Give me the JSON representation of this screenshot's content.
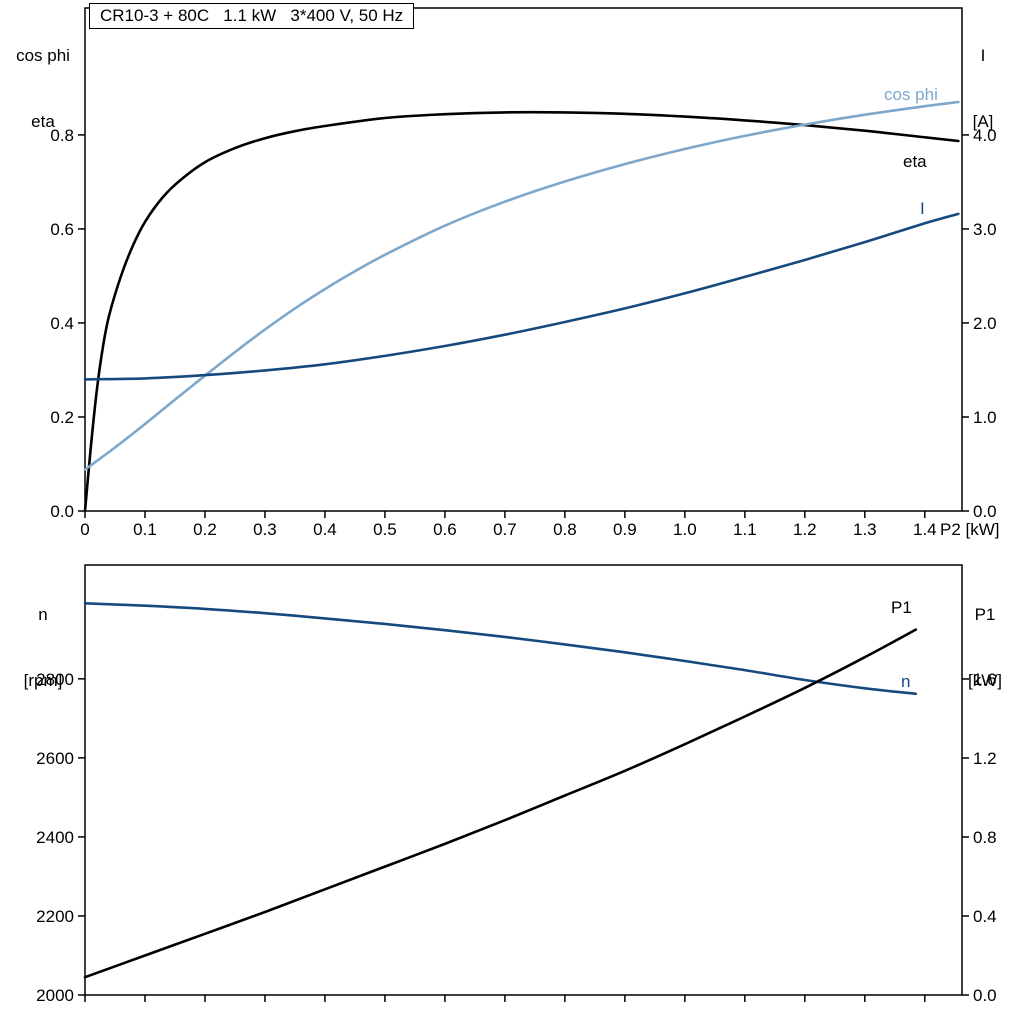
{
  "panel": {
    "title": "CR10-3 + 80C   1.1 kW   3*400 V, 50 Hz",
    "background": "#ffffff"
  },
  "colors": {
    "eta": "#000000",
    "cos_phi": "#7da7cb",
    "current": "#16497e",
    "n": "#16497e",
    "p1": "#000000",
    "frame": "#000000",
    "text": "#000000"
  },
  "chart_data": [
    {
      "id": "top",
      "type": "line",
      "title": "CR10-3 + 80C   1.1 kW   3*400 V, 50 Hz",
      "xlabel": "P2 [kW]",
      "xlim": [
        0,
        1.462
      ],
      "grid": false,
      "x_ticks": [
        0,
        0.1,
        0.2,
        0.3,
        0.4,
        0.5,
        0.6,
        0.7,
        0.8,
        0.9,
        1.0,
        1.1,
        1.2,
        1.3,
        1.4
      ],
      "x_tick_labels": [
        "0",
        "0.1",
        "0.2",
        "0.3",
        "0.4",
        "0.5",
        "0.6",
        "0.7",
        "0.8",
        "0.9",
        "1.0",
        "1.1",
        "1.2",
        "1.3",
        "1.4"
      ],
      "show_x_tick_labels": true,
      "left_axis": {
        "label1": "cos phi",
        "label2": "eta",
        "lim": [
          0,
          1.07
        ],
        "ticks": [
          0,
          0.2,
          0.4,
          0.6,
          0.8
        ],
        "tick_labels": [
          "0.0",
          "0.2",
          "0.4",
          "0.6",
          "0.8"
        ]
      },
      "right_axis": {
        "label1": "I",
        "label2": "[A]",
        "lim": [
          0,
          5.35
        ],
        "ticks": [
          0,
          1,
          2,
          3,
          4
        ],
        "tick_labels": [
          "0.0",
          "1.0",
          "2.0",
          "3.0",
          "4.0"
        ]
      },
      "series": [
        {
          "name": "eta",
          "label": "eta",
          "axis": "left",
          "color_key": "eta",
          "x": [
            0,
            0.01,
            0.02,
            0.03,
            0.04,
            0.06,
            0.08,
            0.1,
            0.13,
            0.16,
            0.2,
            0.25,
            0.3,
            0.35,
            0.4,
            0.5,
            0.6,
            0.7,
            0.8,
            0.9,
            1.0,
            1.1,
            1.2,
            1.3,
            1.4,
            1.456
          ],
          "y": [
            0,
            0.14,
            0.26,
            0.35,
            0.415,
            0.5,
            0.565,
            0.615,
            0.668,
            0.705,
            0.742,
            0.772,
            0.793,
            0.808,
            0.819,
            0.836,
            0.844,
            0.848,
            0.848,
            0.845,
            0.839,
            0.831,
            0.821,
            0.809,
            0.795,
            0.787
          ]
        },
        {
          "name": "cos-phi",
          "label": "cos phi",
          "axis": "left",
          "color_key": "cos_phi",
          "x": [
            0,
            0.05,
            0.1,
            0.15,
            0.2,
            0.25,
            0.3,
            0.35,
            0.4,
            0.45,
            0.5,
            0.6,
            0.7,
            0.8,
            0.9,
            1.0,
            1.1,
            1.2,
            1.3,
            1.4,
            1.456
          ],
          "y": [
            0.088,
            0.135,
            0.185,
            0.237,
            0.288,
            0.338,
            0.386,
            0.431,
            0.472,
            0.51,
            0.545,
            0.607,
            0.658,
            0.701,
            0.738,
            0.77,
            0.798,
            0.822,
            0.843,
            0.861,
            0.87
          ]
        },
        {
          "name": "current",
          "label": "I",
          "axis": "right",
          "color_key": "current",
          "x": [
            0,
            0.1,
            0.2,
            0.3,
            0.4,
            0.5,
            0.6,
            0.7,
            0.8,
            0.9,
            1.0,
            1.1,
            1.2,
            1.3,
            1.4,
            1.456
          ],
          "y": [
            1.4,
            1.41,
            1.445,
            1.495,
            1.56,
            1.65,
            1.755,
            1.875,
            2.01,
            2.155,
            2.315,
            2.49,
            2.67,
            2.86,
            3.06,
            3.16
          ]
        }
      ]
    },
    {
      "id": "bottom",
      "type": "line",
      "title": "",
      "xlabel": "",
      "xlim": [
        0,
        1.462
      ],
      "grid": false,
      "x_ticks": [
        0,
        0.1,
        0.2,
        0.3,
        0.4,
        0.5,
        0.6,
        0.7,
        0.8,
        0.9,
        1.0,
        1.1,
        1.2,
        1.3,
        1.4
      ],
      "x_tick_labels": [],
      "show_x_tick_labels": false,
      "left_axis": {
        "label1": "n",
        "label2": "[rpm]",
        "lim": [
          2000,
          3088
        ],
        "ticks": [
          2000,
          2200,
          2400,
          2600,
          2800
        ],
        "tick_labels": [
          "2000",
          "2200",
          "2400",
          "2600",
          "2800"
        ]
      },
      "right_axis": {
        "label1": "P1",
        "label2": "[kW]",
        "lim": [
          0,
          2.177
        ],
        "ticks": [
          0,
          0.4,
          0.8,
          1.2,
          1.6
        ],
        "tick_labels": [
          "0.0",
          "0.4",
          "0.8",
          "1.2",
          "1.6"
        ]
      },
      "series": [
        {
          "name": "n",
          "label": "n",
          "axis": "left",
          "color_key": "n",
          "x": [
            0,
            0.1,
            0.2,
            0.3,
            0.4,
            0.5,
            0.6,
            0.7,
            0.8,
            0.9,
            1.0,
            1.1,
            1.2,
            1.3,
            1.385
          ],
          "y": [
            2991,
            2985,
            2977,
            2966,
            2953,
            2939,
            2923,
            2906,
            2887,
            2867,
            2845,
            2822,
            2797,
            2776,
            2762
          ]
        },
        {
          "name": "p1",
          "label": "P1",
          "axis": "right",
          "color_key": "p1",
          "x": [
            0,
            0.1,
            0.2,
            0.3,
            0.4,
            0.5,
            0.6,
            0.7,
            0.8,
            0.9,
            1.0,
            1.1,
            1.2,
            1.3,
            1.385
          ],
          "y": [
            0.09,
            0.2,
            0.31,
            0.42,
            0.535,
            0.65,
            0.765,
            0.885,
            1.01,
            1.135,
            1.27,
            1.41,
            1.555,
            1.71,
            1.85
          ]
        }
      ]
    }
  ]
}
